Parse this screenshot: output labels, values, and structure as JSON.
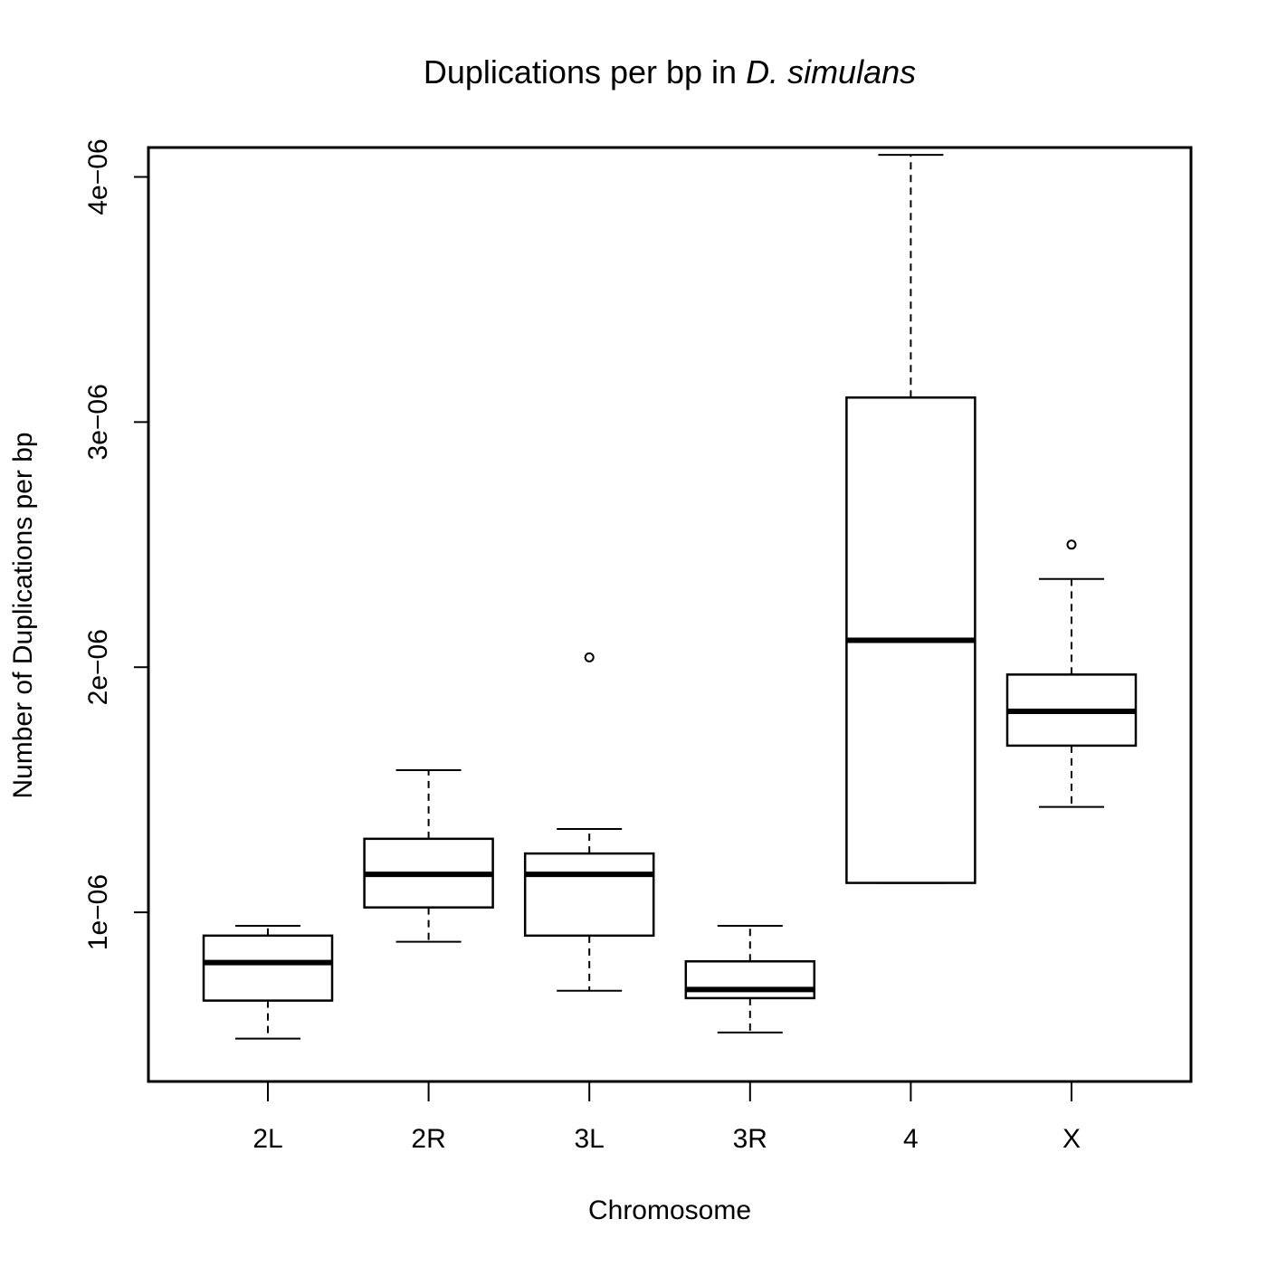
{
  "chart_data": {
    "type": "box",
    "title": {
      "main": "Duplications per bp in ",
      "italic": "D. simulans"
    },
    "xlabel": "Chromosome",
    "ylabel": "Number of Duplications per bp",
    "ylim": [
      3.1e-07,
      4.12e-06
    ],
    "yticks": [
      {
        "value": 1e-06,
        "label": "1e−06"
      },
      {
        "value": 2e-06,
        "label": "2e−06"
      },
      {
        "value": 3e-06,
        "label": "3e−06"
      },
      {
        "value": 4e-06,
        "label": "4e−06"
      }
    ],
    "categories": [
      "2L",
      "2R",
      "3L",
      "3R",
      "4",
      "X"
    ],
    "boxes": [
      {
        "category": "2L",
        "whisker_low": 4.85e-07,
        "q1": 6.4e-07,
        "median": 7.95e-07,
        "q3": 9.05e-07,
        "whisker_high": 9.45e-07,
        "outliers": []
      },
      {
        "category": "2R",
        "whisker_low": 8.8e-07,
        "q1": 1.02e-06,
        "median": 1.155e-06,
        "q3": 1.3e-06,
        "whisker_high": 1.58e-06,
        "outliers": []
      },
      {
        "category": "3L",
        "whisker_low": 6.8e-07,
        "q1": 9.05e-07,
        "median": 1.155e-06,
        "q3": 1.24e-06,
        "whisker_high": 1.34e-06,
        "outliers": [
          2.04e-06
        ]
      },
      {
        "category": "3R",
        "whisker_low": 5.1e-07,
        "q1": 6.5e-07,
        "median": 6.85e-07,
        "q3": 8e-07,
        "whisker_high": 9.45e-07,
        "outliers": []
      },
      {
        "category": "4",
        "whisker_low": 1.12e-06,
        "q1": 1.12e-06,
        "median": 2.11e-06,
        "q3": 3.1e-06,
        "whisker_high": 4.09e-06,
        "outliers": []
      },
      {
        "category": "X",
        "whisker_low": 1.43e-06,
        "q1": 1.68e-06,
        "median": 1.82e-06,
        "q3": 1.97e-06,
        "whisker_high": 2.36e-06,
        "outliers": [
          2.5e-06
        ]
      }
    ],
    "grid": false,
    "legend": "none"
  }
}
